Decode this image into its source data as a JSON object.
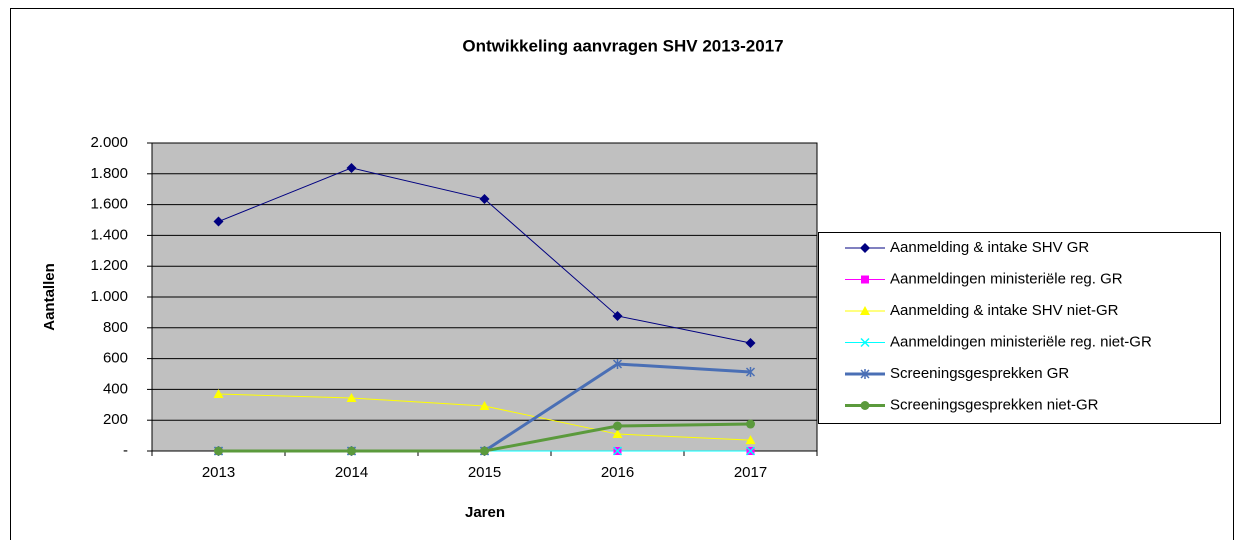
{
  "chart_data": {
    "type": "line",
    "title": "Ontwikkeling aanvragen SHV 2013-2017",
    "x_label": "Jaren",
    "y_label": "Aantallen",
    "categories": [
      "2013",
      "2014",
      "2015",
      "2016",
      "2017"
    ],
    "series": [
      {
        "name": "Aanmelding & intake SHV GR",
        "color": "#000080",
        "marker": "diamond",
        "values": [
          1490,
          1838,
          1636,
          877,
          701
        ]
      },
      {
        "name": "Aanmeldingen ministeriële reg. GR",
        "color": "#ff00ff",
        "marker": "square",
        "values": [
          0,
          0,
          0,
          0,
          0
        ]
      },
      {
        "name": "Aanmelding & intake SHV niet-GR",
        "color": "#ffff00",
        "marker": "triangle",
        "values": [
          370,
          344,
          292,
          110,
          71
        ]
      },
      {
        "name": "Aanmeldingen ministeriële reg. niet-GR",
        "color": "#00ffff",
        "marker": "x",
        "values": [
          0,
          0,
          0,
          0,
          0
        ]
      },
      {
        "name": "Screeningsgesprekken GR",
        "color": "#4a6fb5",
        "marker": "star",
        "values": [
          0,
          0,
          0,
          565,
          513
        ]
      },
      {
        "name": "Screeningsgesprekken niet-GR",
        "color": "#5b9a3c",
        "marker": "circle",
        "values": [
          0,
          0,
          0,
          162,
          175
        ]
      }
    ],
    "ylim": [
      0,
      2000
    ],
    "yticks": [
      {
        "value": 0,
        "label": "-"
      },
      200,
      400,
      600,
      800,
      {
        "value": 1000,
        "label": "1.000"
      },
      {
        "value": 1200,
        "label": "1.200"
      },
      {
        "value": 1400,
        "label": "1.400"
      },
      {
        "value": 1600,
        "label": "1.600"
      },
      {
        "value": 1800,
        "label": "1.800"
      },
      {
        "value": 2000,
        "label": "2.000"
      }
    ],
    "grid": true,
    "plot_background": "#c0c0c0",
    "legend": "right"
  }
}
